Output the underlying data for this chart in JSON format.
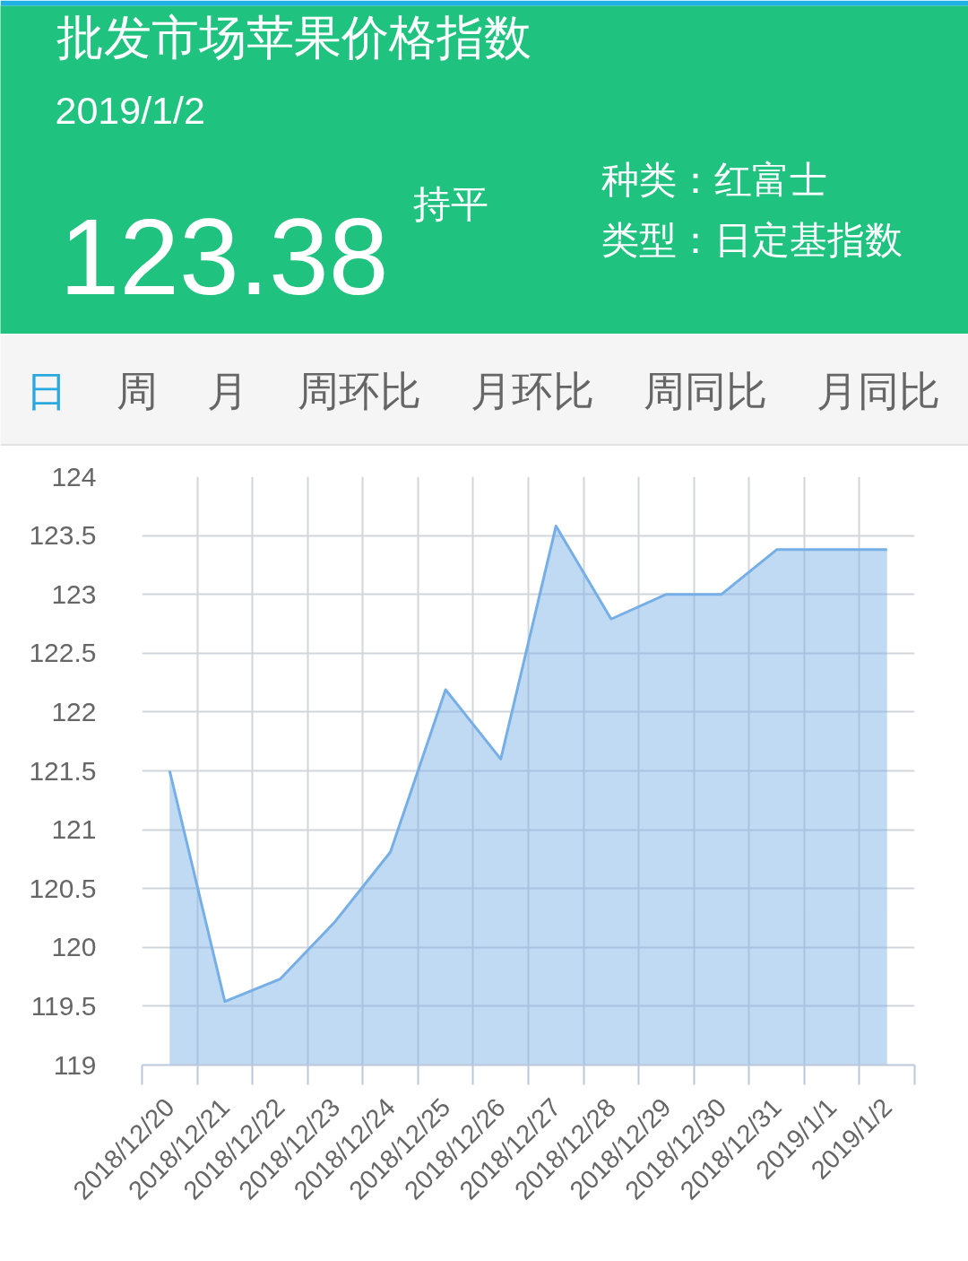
{
  "chart_data": {
    "type": "area",
    "title": "批发市场苹果价格指数",
    "subtitle": "2019/1/2",
    "annotations": [
      "123.38",
      "持平",
      "种类：红富士",
      "类型：日定基指数",
      "日",
      "周",
      "月",
      "周环比",
      "月环比",
      "周同比",
      "月同比"
    ],
    "categories": [
      "2018/12/20",
      "2018/12/21",
      "2018/12/22",
      "2018/12/23",
      "2018/12/24",
      "2018/12/25",
      "2018/12/26",
      "2018/12/27",
      "2018/12/28",
      "2018/12/29",
      "2018/12/30",
      "2018/12/31",
      "2019/1/1",
      "2019/1/2"
    ],
    "series": [
      {
        "color": "#76aee6",
        "values": [
          121.5,
          119.54,
          119.73,
          120.22,
          120.81,
          122.19,
          121.6,
          123.58,
          122.79,
          123.0,
          123.0,
          123.38,
          123.38,
          123.38
        ]
      }
    ],
    "ylim": [
      119,
      124
    ],
    "yticks": [
      119,
      119.5,
      120,
      120.5,
      121,
      121.5,
      122,
      122.5,
      123,
      123.5,
      124
    ],
    "grid": true
  }
}
